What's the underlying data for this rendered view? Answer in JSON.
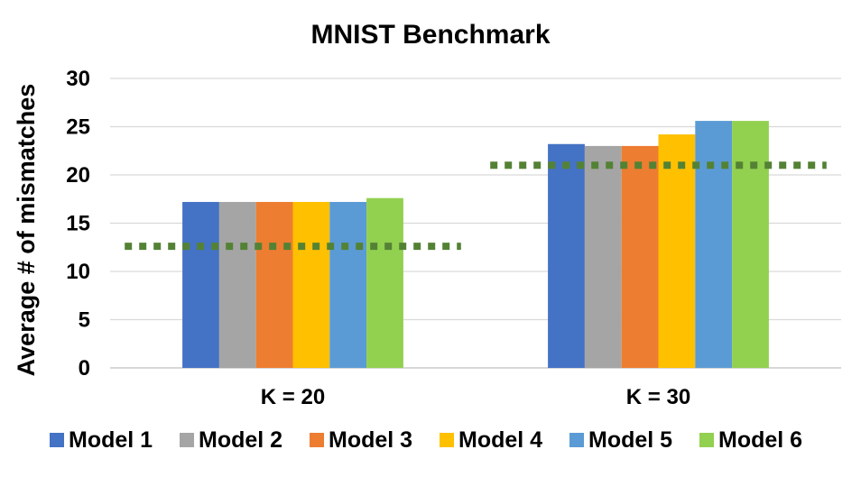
{
  "chart_data": {
    "type": "bar",
    "title": "MNIST Benchmark",
    "xlabel": "",
    "ylabel": "Average # of mismatches",
    "ylim": [
      0,
      30
    ],
    "yticks": [
      0,
      5,
      10,
      15,
      20,
      25,
      30
    ],
    "categories": [
      "K = 20",
      "K = 30"
    ],
    "series": [
      {
        "name": "Model 1",
        "color": "#4472C4",
        "values": [
          17.2,
          23.2
        ]
      },
      {
        "name": "Model 2",
        "color": "#A5A5A5",
        "values": [
          17.2,
          23.0
        ]
      },
      {
        "name": "Model 3",
        "color": "#ED7D31",
        "values": [
          17.2,
          23.0
        ]
      },
      {
        "name": "Model 4",
        "color": "#FFC000",
        "values": [
          17.2,
          24.2
        ]
      },
      {
        "name": "Model 5",
        "color": "#5B9BD5",
        "values": [
          17.2,
          25.6
        ]
      },
      {
        "name": "Model 6",
        "color": "#92D050",
        "values": [
          17.6,
          25.6
        ]
      }
    ],
    "reference_lines": [
      {
        "category": "K = 20",
        "value": 12.6,
        "style": "dotted",
        "color": "#548235"
      },
      {
        "category": "K = 30",
        "value": 21.0,
        "style": "dotted",
        "color": "#548235"
      }
    ],
    "grid": true,
    "legend": "bottom"
  }
}
